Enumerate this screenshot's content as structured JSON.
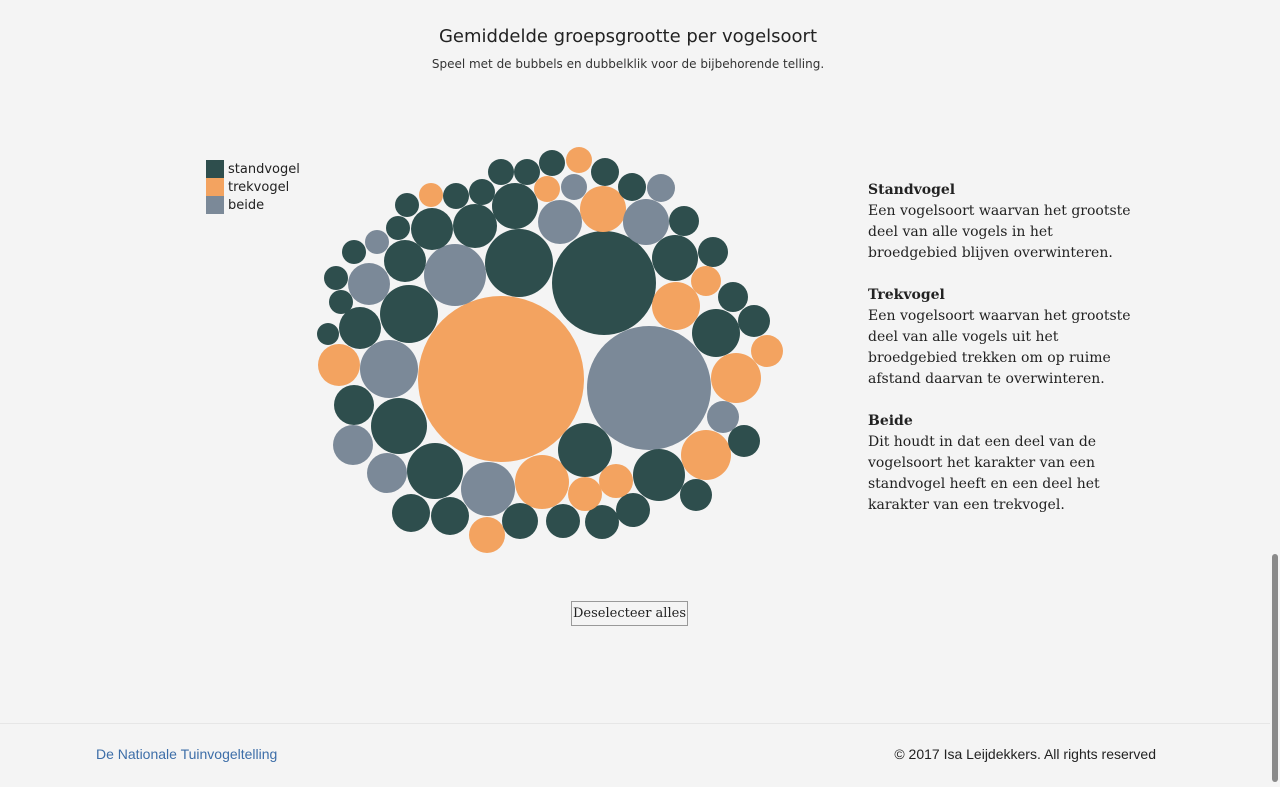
{
  "header": {
    "title": "Gemiddelde groepsgrootte per vogelsoort",
    "subtitle": "Speel met de bubbels en dubbelklik voor de bijbehorende telling."
  },
  "colors": {
    "standvogel": "#2e4e4d",
    "trekvogel": "#f3a360",
    "beide": "#7b8998"
  },
  "legend": {
    "items": [
      {
        "label": "standvogel",
        "color": "#2e4e4d"
      },
      {
        "label": "trekvogel",
        "color": "#f3a360"
      },
      {
        "label": "beide",
        "color": "#7b8998"
      }
    ]
  },
  "bubble_chart": {
    "bubble_count": 75,
    "category_counts": {
      "standvogel": 49,
      "trekvogel": 14,
      "beide": 12
    }
  },
  "info": {
    "blocks": [
      {
        "heading": "Standvogel",
        "text": "Een vogelsoort waarvan het grootste deel van alle vogels in het broedgebied blijven overwinteren."
      },
      {
        "heading": "Trekvogel",
        "text": "Een vogelsoort waarvan het grootste deel van alle vogels uit het broedgebied trekken om op ruime afstand daarvan te overwinteren."
      },
      {
        "heading": "Beide",
        "text": "Dit houdt in dat een deel van de vogelsoort het karakter van een standvogel heeft en een deel het karakter van een trekvogel."
      }
    ]
  },
  "controls": {
    "deselect_label": "Deselecteer alles"
  },
  "footer": {
    "link_label": "De Nationale Tuinvogeltelling",
    "copyright": "© 2017 Isa Leijdekkers. All rights reserved"
  }
}
